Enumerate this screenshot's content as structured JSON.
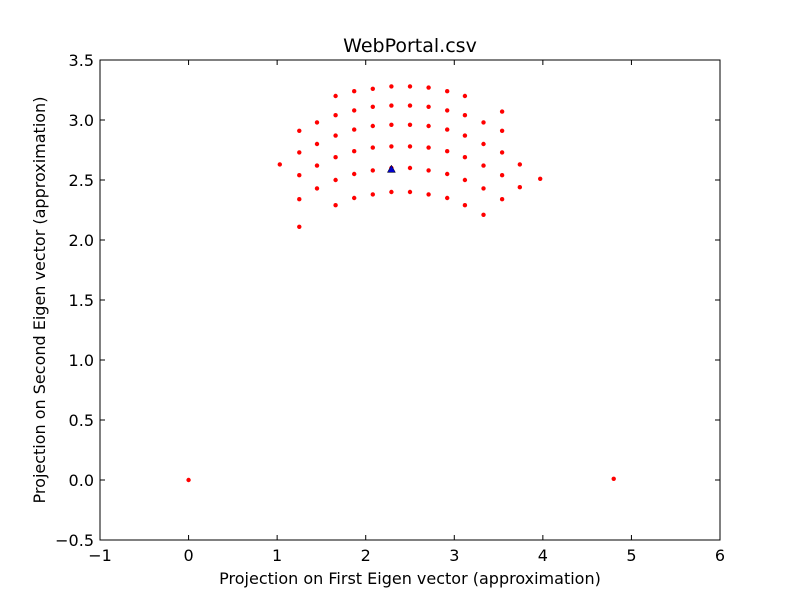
{
  "chart_data": {
    "type": "scatter",
    "title": "WebPortal.csv",
    "xlabel": "Projection on First Eigen vector (approximation)",
    "ylabel": "Projection on Second Eigen vector (approximation)",
    "xlim": [
      -1,
      6
    ],
    "ylim": [
      -0.5,
      3.5
    ],
    "xticks": [
      -1,
      0,
      1,
      2,
      3,
      4,
      5,
      6
    ],
    "xtick_labels": [
      "−1",
      "0",
      "1",
      "2",
      "3",
      "4",
      "5",
      "6"
    ],
    "yticks": [
      -0.5,
      0.0,
      0.5,
      1.0,
      1.5,
      2.0,
      2.5,
      3.0,
      3.5
    ],
    "ytick_labels": [
      "−0.5",
      "0.0",
      "0.5",
      "1.0",
      "1.5",
      "2.0",
      "2.5",
      "3.0",
      "3.5"
    ],
    "grid": false,
    "marker_color": "#ff0000",
    "centroid_color": "#0000cc",
    "series": [
      {
        "marker": "dot",
        "points": [
          [
            0.0,
            0.0
          ],
          [
            4.8,
            0.01
          ],
          [
            1.03,
            2.63
          ],
          [
            3.97,
            2.51
          ],
          [
            1.25,
            2.11
          ],
          [
            1.25,
            2.34
          ],
          [
            1.25,
            2.54
          ],
          [
            1.25,
            2.73
          ],
          [
            1.25,
            2.91
          ],
          [
            1.45,
            2.43
          ],
          [
            1.45,
            2.62
          ],
          [
            1.45,
            2.8
          ],
          [
            1.45,
            2.98
          ],
          [
            1.66,
            2.29
          ],
          [
            1.66,
            2.5
          ],
          [
            1.66,
            2.69
          ],
          [
            1.66,
            2.87
          ],
          [
            1.66,
            3.04
          ],
          [
            1.66,
            3.2
          ],
          [
            1.87,
            2.35
          ],
          [
            1.87,
            2.55
          ],
          [
            1.87,
            2.74
          ],
          [
            1.87,
            2.92
          ],
          [
            1.87,
            3.08
          ],
          [
            1.87,
            3.24
          ],
          [
            2.08,
            2.38
          ],
          [
            2.08,
            2.58
          ],
          [
            2.08,
            2.77
          ],
          [
            2.08,
            2.95
          ],
          [
            2.08,
            3.11
          ],
          [
            2.08,
            3.26
          ],
          [
            2.29,
            2.4
          ],
          [
            2.29,
            2.6
          ],
          [
            2.29,
            2.78
          ],
          [
            2.29,
            2.96
          ],
          [
            2.29,
            3.12
          ],
          [
            2.29,
            3.28
          ],
          [
            2.5,
            2.4
          ],
          [
            2.5,
            2.6
          ],
          [
            2.5,
            2.78
          ],
          [
            2.5,
            2.96
          ],
          [
            2.5,
            3.12
          ],
          [
            2.5,
            3.28
          ],
          [
            2.71,
            2.38
          ],
          [
            2.71,
            2.58
          ],
          [
            2.71,
            2.77
          ],
          [
            2.71,
            2.95
          ],
          [
            2.71,
            3.11
          ],
          [
            2.71,
            3.27
          ],
          [
            2.92,
            2.35
          ],
          [
            2.92,
            2.55
          ],
          [
            2.92,
            2.74
          ],
          [
            2.92,
            2.92
          ],
          [
            2.92,
            3.08
          ],
          [
            2.92,
            3.24
          ],
          [
            3.12,
            2.29
          ],
          [
            3.12,
            2.5
          ],
          [
            3.12,
            2.69
          ],
          [
            3.12,
            2.87
          ],
          [
            3.12,
            3.04
          ],
          [
            3.12,
            3.2
          ],
          [
            3.33,
            2.21
          ],
          [
            3.33,
            2.43
          ],
          [
            3.33,
            2.62
          ],
          [
            3.33,
            2.8
          ],
          [
            3.33,
            2.98
          ],
          [
            3.54,
            2.34
          ],
          [
            3.54,
            2.54
          ],
          [
            3.54,
            2.73
          ],
          [
            3.54,
            2.91
          ],
          [
            3.54,
            3.07
          ],
          [
            3.74,
            2.44
          ],
          [
            3.74,
            2.63
          ]
        ]
      },
      {
        "marker": "triangle",
        "points": [
          [
            2.29,
            2.59
          ]
        ]
      }
    ]
  }
}
